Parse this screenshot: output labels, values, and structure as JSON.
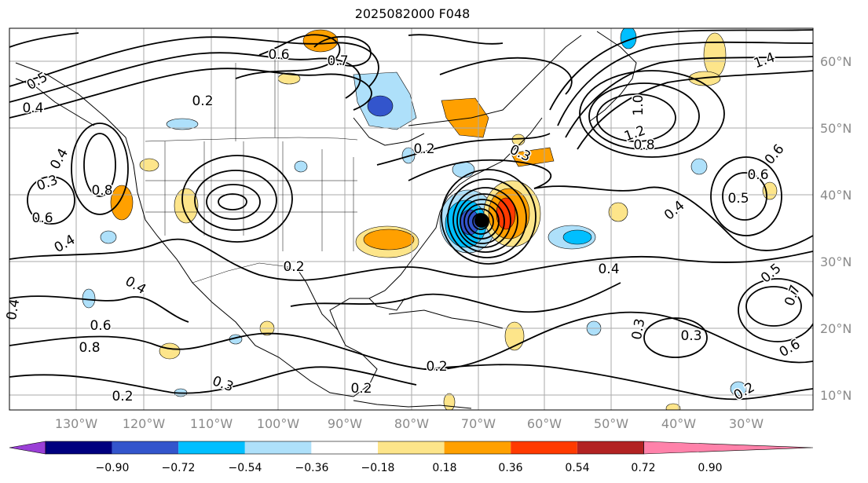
{
  "title": "2025082000 F048",
  "lon_labels": [
    "130°W",
    "120°W",
    "110°W",
    "100°W",
    "90°W",
    "80°W",
    "70°W",
    "60°W",
    "50°W",
    "40°W",
    "30°W"
  ],
  "lat_labels": [
    "60°N",
    "50°N",
    "40°N",
    "30°N",
    "20°N",
    "10°N"
  ],
  "colorbar": {
    "ticks": [
      "−0.90",
      "−0.72",
      "−0.54",
      "−0.36",
      "−0.18",
      "0.18",
      "0.36",
      "0.54",
      "0.72",
      "0.90"
    ],
    "colors": [
      "#9a3fd6",
      "#00007f",
      "#3355cc",
      "#00bfff",
      "#aee0fa",
      "#ffffff",
      "#fde58a",
      "#ffa000",
      "#ff3a00",
      "#b22222",
      "#ff82aa"
    ]
  },
  "contour_labels": [
    {
      "text": "0.2",
      "rot": 0
    },
    {
      "text": "0.4",
      "rot": 0
    },
    {
      "text": "0.5",
      "rot": -30
    },
    {
      "text": "0.6",
      "rot": 0
    },
    {
      "text": "0.8",
      "rot": 0
    },
    {
      "text": "0.3",
      "rot": -20
    },
    {
      "text": "0.4",
      "rot": -60
    },
    {
      "text": "0.6",
      "rot": 0
    },
    {
      "text": "0.7",
      "rot": 0
    },
    {
      "text": "1.0",
      "rot": -90
    },
    {
      "text": "1.2",
      "rot": -20
    },
    {
      "text": "1.4",
      "rot": -20
    },
    {
      "text": "0.8",
      "rot": 0
    },
    {
      "text": "0.2",
      "rot": 0
    },
    {
      "text": "0.3",
      "rot": 25
    },
    {
      "text": "0.4",
      "rot": -40
    },
    {
      "text": "0.5",
      "rot": 0
    },
    {
      "text": "0.6",
      "rot": 0
    },
    {
      "text": "0.4",
      "rot": 0
    },
    {
      "text": "0.2",
      "rot": 0
    },
    {
      "text": "0.3",
      "rot": -80
    },
    {
      "text": "0.3",
      "rot": 0
    },
    {
      "text": "0.5",
      "rot": -40
    },
    {
      "text": "0.7",
      "rot": -70
    },
    {
      "text": "0.6",
      "rot": -30
    },
    {
      "text": "0.2",
      "rot": -30
    },
    {
      "text": "0.2",
      "rot": 0
    },
    {
      "text": "0.2",
      "rot": 0
    },
    {
      "text": "0.3",
      "rot": 20
    },
    {
      "text": "0.4",
      "rot": 30
    },
    {
      "text": "0.6",
      "rot": -50
    },
    {
      "text": "0.4",
      "rot": -30
    },
    {
      "text": "0.8",
      "rot": 0
    },
    {
      "text": "0.6",
      "rot": 0
    },
    {
      "text": "0.2",
      "rot": 0
    },
    {
      "text": "0.4",
      "rot": -80
    }
  ]
}
